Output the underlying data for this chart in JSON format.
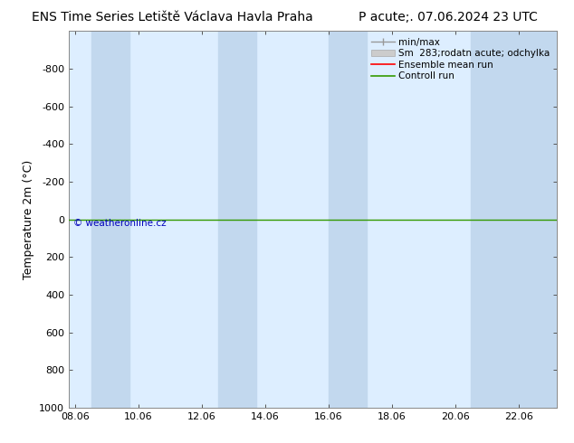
{
  "title_left": "ENS Time Series Letiště Václava Havla Praha",
  "title_right": "P acute;. 07.06.2024 23 UTC",
  "ylabel": "Temperature 2m (°C)",
  "watermark": "© weatheronline.cz",
  "xtick_labels": [
    "08.06",
    "10.06",
    "12.06",
    "14.06",
    "16.06",
    "18.06",
    "20.06",
    "22.06"
  ],
  "xtick_positions": [
    0,
    2,
    4,
    6,
    8,
    10,
    12,
    14
  ],
  "xlim": [
    -0.2,
    15.2
  ],
  "ylim_inverted": [
    1000,
    -1000
  ],
  "ytick_positions": [
    -800,
    -600,
    -400,
    -200,
    0,
    200,
    400,
    600,
    800,
    1000
  ],
  "ytick_labels": [
    "-800",
    "-600",
    "-400",
    "-200",
    "0",
    "200",
    "400",
    "600",
    "800",
    "1000"
  ],
  "bg_color": "#ffffff",
  "plot_bg_color": "#ddeeff",
  "band_color": "#c2d8ee",
  "band_pairs": [
    [
      0.5,
      1.7
    ],
    [
      4.5,
      5.7
    ],
    [
      8.0,
      9.2
    ],
    [
      12.5,
      15.2
    ]
  ],
  "green_line_y": 0,
  "legend_entries": [
    "min/max",
    "Sm  283;rodatn acute; odchylka",
    "Ensemble mean run",
    "Controll run"
  ],
  "legend_colors": [
    "#999999",
    "#cccccc",
    "#ff0000",
    "#339900"
  ],
  "font_color": "#000000",
  "title_fontsize": 10,
  "axis_fontsize": 9,
  "tick_fontsize": 8,
  "watermark_color": "#0000bb"
}
